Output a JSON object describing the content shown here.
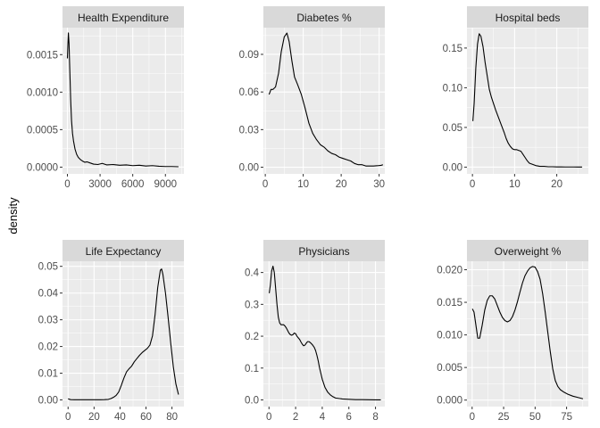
{
  "chart_data": {
    "type": "line",
    "layout": "facet-grid",
    "ylabel": "density",
    "panel_bg": "#ebebeb",
    "strip_bg": "#d9d9d9",
    "grid_color": "#ffffff",
    "line_color": "#000000",
    "panels": [
      {
        "title": "Health Expenditure",
        "xlim": [
          -450,
          10700
        ],
        "ylim": [
          -9e-05,
          0.00186
        ],
        "xticks": [
          0,
          3000,
          6000,
          9000
        ],
        "xtick_labels": [
          "0",
          "3000",
          "6000",
          "9000"
        ],
        "yticks": [
          0,
          0.0005,
          0.001,
          0.0015
        ],
        "ytick_labels": [
          "0.0000",
          "0.0005",
          "0.0010",
          "0.0015"
        ],
        "series": {
          "x": [
            0,
            40,
            90,
            150,
            220,
            300,
            380,
            470,
            560,
            700,
            850,
            1000,
            1200,
            1400,
            1600,
            1800,
            2100,
            2400,
            2800,
            3200,
            3600,
            4200,
            4800,
            5400,
            6000,
            6600,
            7200,
            7800,
            8400,
            9000,
            9600,
            10200
          ],
          "y": [
            0.00145,
            0.00162,
            0.00179,
            0.00165,
            0.0013,
            0.0009,
            0.00062,
            0.00045,
            0.00035,
            0.00024,
            0.00017,
            0.00013,
            0.0001,
            8e-05,
            6.5e-05,
            7e-05,
            5.5e-05,
            4e-05,
            3.5e-05,
            5e-05,
            3e-05,
            3.5e-05,
            2.5e-05,
            3e-05,
            2e-05,
            2.5e-05,
            1.5e-05,
            2e-05,
            1.2e-05,
            8e-06,
            8e-06,
            5e-06
          ]
        }
      },
      {
        "title": "Diabetes %",
        "xlim": [
          -0.5,
          31.5
        ],
        "ylim": [
          -0.0053,
          0.1113
        ],
        "xticks": [
          0,
          10,
          20,
          30
        ],
        "xtick_labels": [
          "0",
          "10",
          "20",
          "30"
        ],
        "yticks": [
          0,
          0.03,
          0.06,
          0.09
        ],
        "ytick_labels": [
          "0.00",
          "0.03",
          "0.06",
          "0.09"
        ],
        "series": {
          "x": [
            1,
            1.5,
            2,
            2.7,
            3.5,
            4.2,
            5,
            5.7,
            6.3,
            7,
            7.7,
            8.5,
            9.5,
            10.5,
            11.5,
            12.5,
            13.5,
            14.5,
            15.5,
            16.5,
            17.5,
            18.5,
            19.5,
            20.5,
            21.5,
            22.5,
            23.5,
            24.5,
            25.5,
            26.5,
            27.5,
            28.5,
            29.5,
            30.5,
            31
          ],
          "y": [
            0.058,
            0.062,
            0.062,
            0.064,
            0.075,
            0.092,
            0.104,
            0.107,
            0.1,
            0.085,
            0.072,
            0.066,
            0.058,
            0.047,
            0.035,
            0.027,
            0.022,
            0.018,
            0.016,
            0.013,
            0.011,
            0.01,
            0.008,
            0.007,
            0.006,
            0.005,
            0.003,
            0.002,
            0.002,
            0.001,
            0.001,
            0.001,
            0.0012,
            0.0015,
            0.002
          ]
        }
      },
      {
        "title": "Hospital beds",
        "xlim": [
          -1.3,
          27.5
        ],
        "ylim": [
          -0.0085,
          0.1757
        ],
        "xticks": [
          0,
          10,
          20
        ],
        "xtick_labels": [
          "0",
          "10",
          "20"
        ],
        "yticks": [
          0,
          0.05,
          0.1,
          0.15
        ],
        "ytick_labels": [
          "0.00",
          "0.05",
          "0.10",
          "0.15"
        ],
        "series": {
          "x": [
            0.1,
            0.4,
            0.8,
            1.2,
            1.6,
            2.0,
            2.5,
            3.0,
            3.5,
            4.0,
            4.5,
            5.0,
            5.5,
            6.0,
            6.5,
            7.0,
            7.5,
            8.0,
            8.5,
            9.0,
            9.5,
            10.0,
            10.5,
            11.0,
            11.5,
            12.0,
            12.5,
            13.0,
            13.5,
            14.0,
            15.0,
            16.0,
            17.0,
            18.0,
            19.0,
            20.0,
            21.0,
            22.0,
            23.0,
            24.0,
            25.0,
            26.0
          ],
          "y": [
            0.058,
            0.08,
            0.125,
            0.155,
            0.168,
            0.165,
            0.152,
            0.132,
            0.115,
            0.098,
            0.088,
            0.08,
            0.072,
            0.065,
            0.058,
            0.051,
            0.044,
            0.036,
            0.03,
            0.026,
            0.023,
            0.022,
            0.022,
            0.021,
            0.02,
            0.016,
            0.012,
            0.008,
            0.005,
            0.004,
            0.002,
            0.001,
            0.001,
            0.0005,
            0.0005,
            0.0003,
            0.0003,
            0.0002,
            0.0002,
            0.0002,
            0.0001,
            0.0001
          ]
        }
      },
      {
        "title": "Life Expectancy",
        "xlim": [
          -4.3,
          89.2
        ],
        "ylim": [
          -0.0025,
          0.0519
        ],
        "xticks": [
          0,
          20,
          40,
          60,
          80
        ],
        "xtick_labels": [
          "0",
          "20",
          "40",
          "60",
          "80"
        ],
        "yticks": [
          0,
          0.01,
          0.02,
          0.03,
          0.04,
          0.05
        ],
        "ytick_labels": [
          "0.00",
          "0.01",
          "0.02",
          "0.03",
          "0.04",
          "0.05"
        ],
        "series": {
          "x": [
            0,
            2,
            5,
            10,
            15,
            20,
            25,
            28,
            31,
            33,
            35,
            37,
            39,
            41,
            43,
            45,
            47,
            49,
            51,
            53,
            55,
            57,
            59,
            61,
            63,
            65,
            67,
            69,
            71,
            72,
            73,
            75,
            77,
            79,
            81,
            83,
            85
          ],
          "y": [
            0.0004,
            0.0001,
            5e-05,
            5e-05,
            5e-05,
            5e-05,
            5e-05,
            0.0001,
            0.0002,
            0.0005,
            0.001,
            0.0017,
            0.003,
            0.0055,
            0.0082,
            0.0105,
            0.0117,
            0.0127,
            0.0143,
            0.0155,
            0.0167,
            0.0177,
            0.0185,
            0.0193,
            0.0205,
            0.024,
            0.032,
            0.042,
            0.0485,
            0.049,
            0.047,
            0.04,
            0.031,
            0.0215,
            0.0125,
            0.006,
            0.002
          ]
        }
      },
      {
        "title": "Physicians",
        "xlim": [
          -0.42,
          8.7
        ],
        "ylim": [
          -0.021,
          0.4353
        ],
        "xticks": [
          0,
          2,
          4,
          6,
          8
        ],
        "xtick_labels": [
          "0",
          "2",
          "4",
          "6",
          "8"
        ],
        "yticks": [
          0,
          0.1,
          0.2,
          0.3,
          0.4
        ],
        "ytick_labels": [
          "0.0",
          "0.1",
          "0.2",
          "0.3",
          "0.4"
        ],
        "series": {
          "x": [
            0.02,
            0.1,
            0.2,
            0.3,
            0.4,
            0.5,
            0.6,
            0.7,
            0.8,
            0.9,
            1.0,
            1.1,
            1.2,
            1.3,
            1.4,
            1.5,
            1.6,
            1.7,
            1.8,
            1.9,
            2.0,
            2.1,
            2.2,
            2.3,
            2.4,
            2.5,
            2.6,
            2.7,
            2.8,
            2.9,
            3.0,
            3.1,
            3.2,
            3.3,
            3.4,
            3.5,
            3.6,
            3.7,
            3.8,
            3.9,
            4.0,
            4.2,
            4.4,
            4.6,
            4.8,
            5.0,
            5.5,
            6.0,
            6.5,
            7.0,
            7.5,
            8.0,
            8.4
          ],
          "y": [
            0.335,
            0.36,
            0.405,
            0.42,
            0.4,
            0.35,
            0.3,
            0.26,
            0.242,
            0.236,
            0.236,
            0.236,
            0.232,
            0.226,
            0.218,
            0.21,
            0.205,
            0.203,
            0.205,
            0.21,
            0.208,
            0.2,
            0.195,
            0.19,
            0.182,
            0.175,
            0.17,
            0.172,
            0.178,
            0.183,
            0.183,
            0.18,
            0.176,
            0.171,
            0.165,
            0.155,
            0.14,
            0.122,
            0.1,
            0.083,
            0.065,
            0.04,
            0.025,
            0.016,
            0.01,
            0.006,
            0.003,
            0.002,
            0.001,
            0.0008,
            0.0005,
            0.0003,
            0.0002
          ]
        }
      },
      {
        "title": "Overweight %",
        "xlim": [
          -4.1,
          92.3
        ],
        "ylim": [
          -0.001,
          0.0213
        ],
        "xticks": [
          0,
          25,
          50,
          75
        ],
        "xtick_labels": [
          "0",
          "25",
          "50",
          "75"
        ],
        "yticks": [
          0,
          0.005,
          0.01,
          0.015,
          0.02
        ],
        "ytick_labels": [
          "0.000",
          "0.005",
          "0.010",
          "0.015",
          "0.020"
        ],
        "series": {
          "x": [
            0.2,
            1.5,
            3,
            4.5,
            6,
            8,
            10,
            12,
            14,
            16,
            18,
            20,
            22,
            24,
            26,
            28,
            30,
            32,
            34,
            36,
            38,
            40,
            42,
            44,
            46,
            48,
            50,
            52,
            54,
            56,
            58,
            60,
            62,
            64,
            66,
            68,
            70,
            73,
            76,
            80,
            84,
            88
          ],
          "y": [
            0.014,
            0.0135,
            0.0115,
            0.0095,
            0.0095,
            0.0115,
            0.0138,
            0.0153,
            0.016,
            0.016,
            0.0155,
            0.0145,
            0.0135,
            0.0127,
            0.0122,
            0.012,
            0.0122,
            0.0128,
            0.0138,
            0.0151,
            0.0166,
            0.018,
            0.0191,
            0.0198,
            0.0203,
            0.0205,
            0.0204,
            0.0197,
            0.0185,
            0.0163,
            0.0135,
            0.0105,
            0.0075,
            0.0048,
            0.003,
            0.0021,
            0.0016,
            0.0012,
            0.0009,
            0.0006,
            0.0004,
            0.0002
          ]
        }
      }
    ]
  }
}
